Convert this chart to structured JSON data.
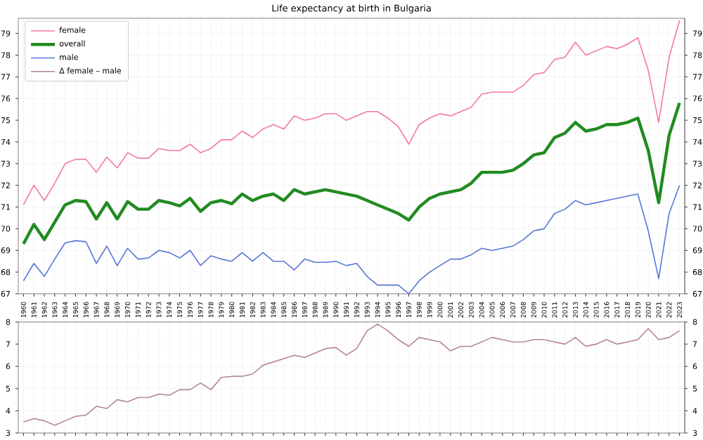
{
  "chart_data": [
    {
      "type": "line",
      "title": "Life expectancy at birth in Bulgaria",
      "categories": [
        "1960",
        "1961",
        "1962",
        "1963",
        "1964",
        "1965",
        "1966",
        "1967",
        "1968",
        "1969",
        "1970",
        "1971",
        "1972",
        "1973",
        "1974",
        "1975",
        "1976",
        "1977",
        "1978",
        "1979",
        "1980",
        "1981",
        "1982",
        "1983",
        "1984",
        "1985",
        "1986",
        "1987",
        "1988",
        "1989",
        "1990",
        "1991",
        "1992",
        "1993",
        "1994",
        "1995",
        "1996",
        "1997",
        "1998",
        "1999",
        "2000",
        "2001",
        "2002",
        "2003",
        "2004",
        "2005",
        "2006",
        "2007",
        "2008",
        "2009",
        "2010",
        "2011",
        "2012",
        "2013",
        "2014",
        "2015",
        "2016",
        "2017",
        "2018",
        "2019",
        "2020",
        "2021",
        "2022",
        "2023"
      ],
      "series": [
        {
          "name": "female",
          "color": "#f27aa0",
          "values": [
            71.1,
            72.0,
            71.3,
            72.1,
            73.0,
            73.2,
            73.2,
            72.6,
            73.3,
            72.8,
            73.5,
            73.25,
            73.25,
            73.7,
            73.6,
            73.6,
            73.9,
            73.5,
            73.7,
            74.1,
            74.1,
            74.5,
            74.2,
            74.6,
            74.8,
            74.6,
            75.2,
            75.0,
            75.1,
            75.3,
            75.3,
            75.0,
            75.2,
            75.4,
            75.4,
            75.1,
            74.7,
            73.9,
            74.8,
            75.1,
            75.3,
            75.2,
            75.4,
            75.6,
            76.2,
            76.3,
            76.3,
            76.3,
            76.6,
            77.1,
            77.2,
            77.8,
            77.9,
            78.6,
            78.0,
            78.2,
            78.4,
            78.3,
            78.5,
            78.8,
            77.3,
            74.9,
            77.9,
            79.6
          ]
        },
        {
          "name": "overall",
          "color": "#228b22",
          "values": [
            69.3,
            70.2,
            69.5,
            70.3,
            71.1,
            71.3,
            71.25,
            70.45,
            71.2,
            70.45,
            71.25,
            70.9,
            70.9,
            71.3,
            71.2,
            71.05,
            71.4,
            70.8,
            71.2,
            71.3,
            71.15,
            71.6,
            71.3,
            71.5,
            71.6,
            71.3,
            71.8,
            71.6,
            71.7,
            71.8,
            71.7,
            71.6,
            71.5,
            71.3,
            71.1,
            70.9,
            70.7,
            70.4,
            71.0,
            71.4,
            71.6,
            71.7,
            71.8,
            72.1,
            72.6,
            72.6,
            72.6,
            72.7,
            73.0,
            73.4,
            73.5,
            74.2,
            74.4,
            74.9,
            74.5,
            74.6,
            74.8,
            74.8,
            74.9,
            75.1,
            73.6,
            71.2,
            74.3,
            75.8
          ]
        },
        {
          "name": "male",
          "color": "#5876d8",
          "values": [
            67.6,
            68.4,
            67.8,
            68.6,
            69.35,
            69.45,
            69.4,
            68.4,
            69.2,
            68.3,
            69.1,
            68.6,
            68.65,
            69.0,
            68.9,
            68.65,
            69.0,
            68.3,
            68.75,
            68.6,
            68.5,
            68.9,
            68.5,
            68.9,
            68.5,
            68.5,
            68.1,
            68.6,
            68.45,
            68.45,
            68.5,
            68.3,
            68.4,
            67.8,
            67.4,
            67.4,
            67.4,
            67.0,
            67.6,
            68.0,
            68.3,
            68.6,
            68.6,
            68.8,
            69.1,
            69.0,
            69.1,
            69.2,
            69.5,
            69.9,
            70.0,
            70.7,
            70.9,
            71.3,
            71.1,
            71.2,
            71.3,
            71.4,
            71.5,
            71.6,
            69.9,
            67.7,
            70.7,
            72.0
          ]
        }
      ],
      "ylim": [
        67,
        79.7
      ],
      "yticks": [
        67,
        68,
        69,
        70,
        71,
        72,
        73,
        74,
        75,
        76,
        77,
        78,
        79
      ],
      "y2lim": [
        67,
        79.7
      ],
      "y2ticks": [
        67,
        68,
        69,
        70,
        71,
        72,
        73,
        74,
        75,
        76,
        77,
        78,
        79
      ],
      "grid": true,
      "legend": "top left",
      "marker": "none",
      "line_style": "solid"
    },
    {
      "type": "line",
      "categories": [
        "1960",
        "1961",
        "1962",
        "1963",
        "1964",
        "1965",
        "1966",
        "1967",
        "1968",
        "1969",
        "1970",
        "1971",
        "1972",
        "1973",
        "1974",
        "1975",
        "1976",
        "1977",
        "1978",
        "1979",
        "1980",
        "1981",
        "1982",
        "1983",
        "1984",
        "1985",
        "1986",
        "1987",
        "1988",
        "1989",
        "1990",
        "1991",
        "1992",
        "1993",
        "1994",
        "1995",
        "1996",
        "1997",
        "1998",
        "1999",
        "2000",
        "2001",
        "2002",
        "2003",
        "2004",
        "2005",
        "2006",
        "2007",
        "2008",
        "2009",
        "2010",
        "2011",
        "2012",
        "2013",
        "2014",
        "2015",
        "2016",
        "2017",
        "2018",
        "2019",
        "2020",
        "2021",
        "2022",
        "2023"
      ],
      "series": [
        {
          "name": "Δ female – male",
          "color": "#b4868e",
          "values": [
            3.5,
            3.65,
            3.55,
            3.35,
            3.55,
            3.75,
            3.8,
            4.2,
            4.1,
            4.5,
            4.4,
            4.6,
            4.6,
            4.75,
            4.7,
            4.95,
            4.95,
            5.25,
            4.95,
            5.5,
            5.55,
            5.55,
            5.65,
            6.05,
            6.2,
            6.35,
            6.5,
            6.4,
            6.6,
            6.8,
            6.85,
            6.5,
            6.8,
            7.6,
            7.9,
            7.6,
            7.2,
            6.9,
            7.3,
            7.2,
            7.1,
            6.7,
            6.9,
            6.9,
            7.1,
            7.3,
            7.2,
            7.1,
            7.1,
            7.2,
            7.2,
            7.1,
            7.0,
            7.3,
            6.9,
            7.0,
            7.2,
            7.0,
            7.1,
            7.2,
            7.7,
            7.2,
            7.3,
            7.6
          ]
        }
      ],
      "ylim": [
        3,
        8
      ],
      "yticks": [
        3,
        4,
        5,
        6,
        7,
        8
      ],
      "y2lim": [
        3,
        8
      ],
      "y2ticks": [
        3,
        4,
        5,
        6,
        7,
        8
      ],
      "grid": true,
      "tick_labels": "y",
      "marker": "none",
      "line_style": "solid"
    }
  ]
}
